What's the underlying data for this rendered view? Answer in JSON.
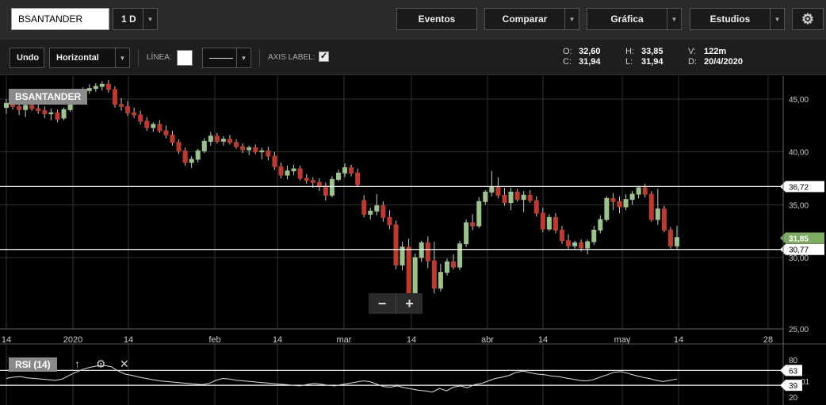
{
  "toolbar": {
    "symbol": "BSANTANDER",
    "interval": "1 D",
    "events": "Eventos",
    "compare": "Comparar",
    "chart": "Gráfica",
    "studies": "Estudios"
  },
  "drawing": {
    "undo": "Undo",
    "tool": "Horizontal",
    "line_label": "LÍNEA:",
    "axis_label": "AXIS LABEL:"
  },
  "ohlc": {
    "o_key": "O:",
    "o": "32,60",
    "c_key": "C:",
    "c": "31,94",
    "h_key": "H:",
    "h": "33,85",
    "l_key": "L:",
    "l": "31,94",
    "v_key": "V:",
    "v": "122m",
    "d_key": "D:",
    "d": "20/4/2020"
  },
  "price_chart": {
    "label": "BSANTANDER",
    "y_ticks": [
      "45,00",
      "40,00",
      "35,00",
      "30,00",
      "25,00"
    ],
    "x_ticks": [
      "14",
      "2020",
      "14",
      "feb",
      "14",
      "mar",
      "14",
      "abr",
      "14",
      "may",
      "14",
      "28"
    ],
    "last_price": "31,85",
    "hline_upper": "36,72",
    "hline_lower": "30,77",
    "colors": {
      "up": "#9bc48a",
      "down": "#c0392b",
      "last": "#7dab61"
    }
  },
  "rsi": {
    "label": "RSI (14)",
    "ticks": [
      "80",
      "20"
    ],
    "hline_upper": "63",
    "hline_lower": "39",
    "value": "01"
  }
}
